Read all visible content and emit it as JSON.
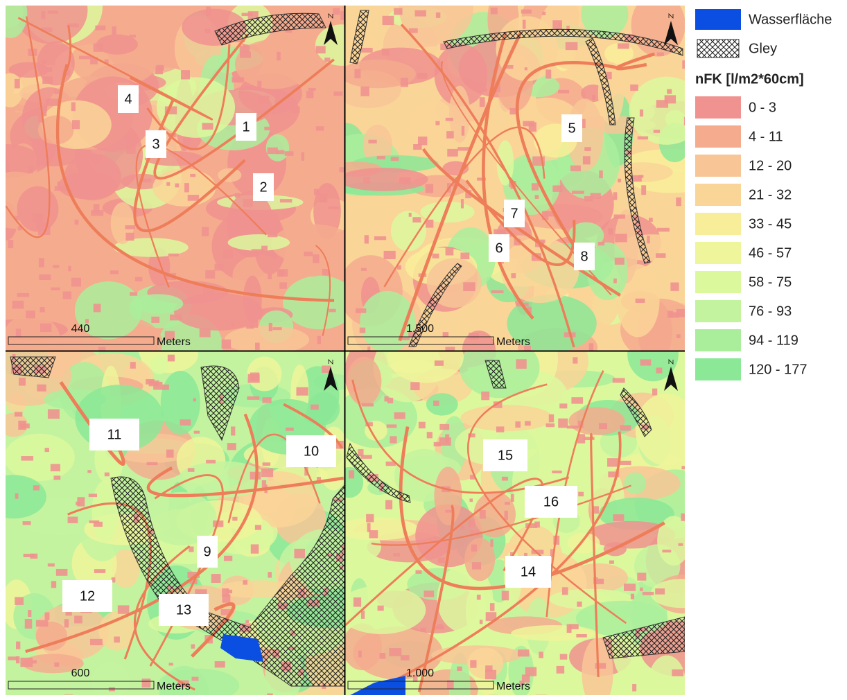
{
  "panels": [
    {
      "labels": [
        "1",
        "2",
        "3",
        "4"
      ],
      "scale": {
        "value": "440",
        "unit": "Meters"
      }
    },
    {
      "labels": [
        "5",
        "6",
        "7",
        "8"
      ],
      "scale": {
        "value": "1.500",
        "unit": "Meters"
      }
    },
    {
      "labels": [
        "11",
        "10",
        "9",
        "12",
        "13"
      ],
      "scale": {
        "value": "600",
        "unit": "Meters"
      }
    },
    {
      "labels": [
        "15",
        "16",
        "14"
      ],
      "scale": {
        "value": "1.000",
        "unit": "Meters"
      }
    }
  ],
  "legend": {
    "water": {
      "label": "Wasserfläche",
      "color": "#0b4fe2"
    },
    "gley": {
      "label": "Gley"
    },
    "title": "nFK [l/m2*60cm]",
    "classes": [
      {
        "label": "0 - 3",
        "color": "#f0928f"
      },
      {
        "label": "4 - 11",
        "color": "#f5ab8e"
      },
      {
        "label": "12 - 20",
        "color": "#f8c596"
      },
      {
        "label": "21 - 32",
        "color": "#fad598"
      },
      {
        "label": "33 - 45",
        "color": "#f8ee99"
      },
      {
        "label": "46 - 57",
        "color": "#eef59a"
      },
      {
        "label": "58 - 75",
        "color": "#dcf89d"
      },
      {
        "label": "76 - 93",
        "color": "#c4f39f"
      },
      {
        "label": "94 - 119",
        "color": "#aaee9c"
      },
      {
        "label": "120 - 177",
        "color": "#8be897"
      }
    ]
  }
}
